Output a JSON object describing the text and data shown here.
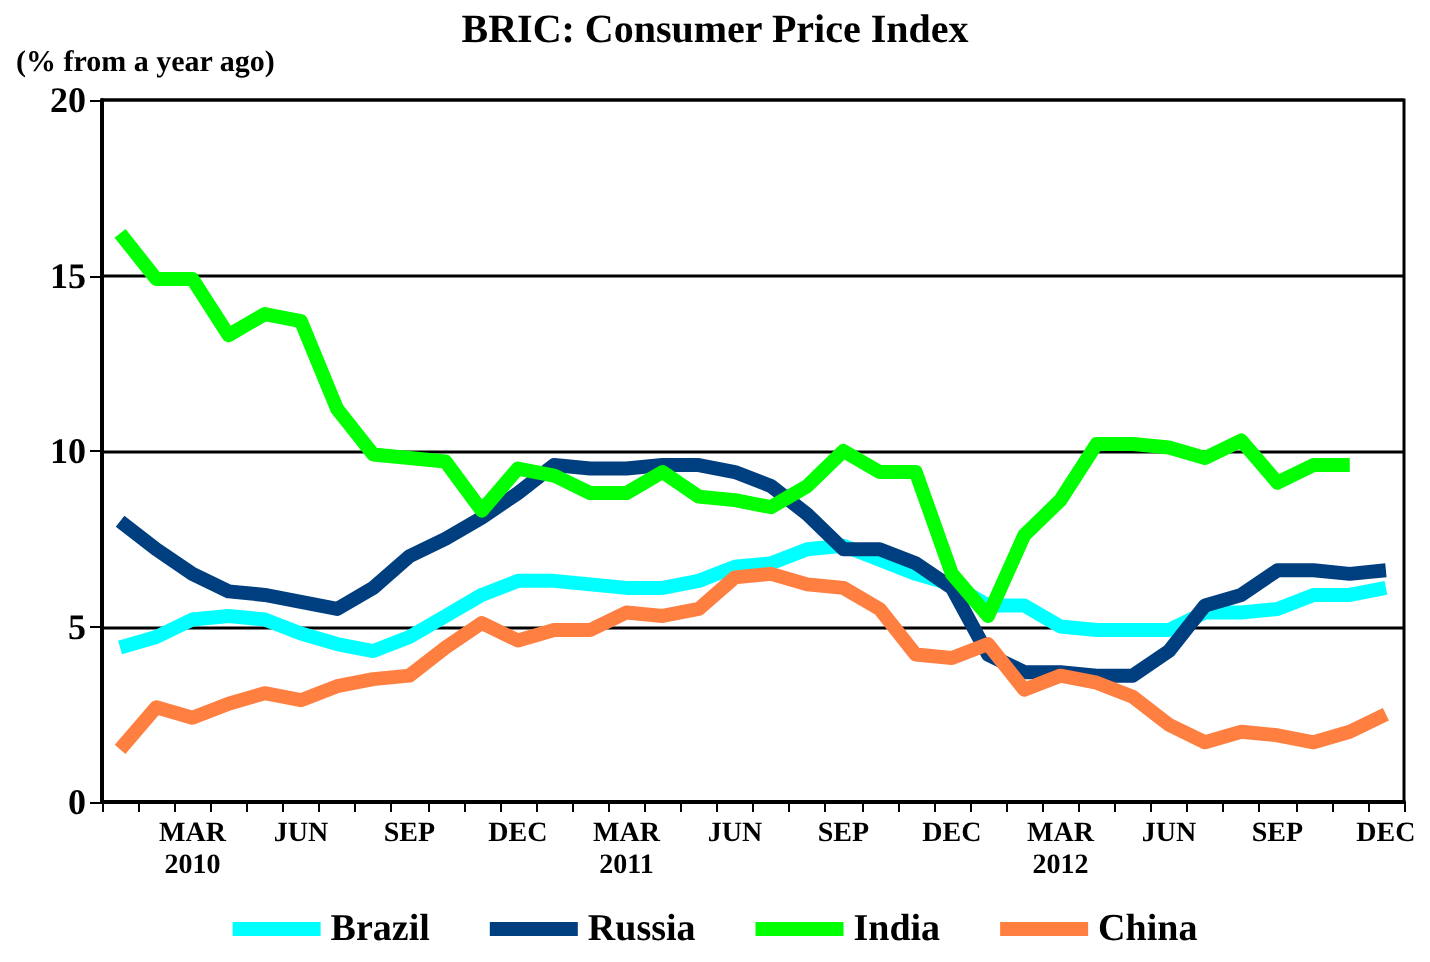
{
  "chart_data": {
    "type": "line",
    "title": "BRIC: Consumer Price Index",
    "ylabel": "(% from a year ago)",
    "categories": [
      null,
      null,
      "MAR\n2010",
      null,
      null,
      "JUN",
      null,
      null,
      "SEP",
      null,
      null,
      "DEC",
      null,
      null,
      "MAR\n2011",
      null,
      null,
      "JUN",
      null,
      null,
      "SEP",
      null,
      null,
      "DEC",
      null,
      null,
      "MAR\n2012",
      null,
      null,
      "JUN",
      null,
      null,
      "SEP",
      null,
      null,
      "DEC"
    ],
    "series": [
      {
        "name": "Brazil",
        "color": "#00ffff",
        "values": [
          4.4,
          4.7,
          5.2,
          5.3,
          5.2,
          4.8,
          4.5,
          4.3,
          4.7,
          5.3,
          5.9,
          6.3,
          6.3,
          6.2,
          6.1,
          6.1,
          6.3,
          6.7,
          6.8,
          7.2,
          7.3,
          6.9,
          6.5,
          6.2,
          5.6,
          5.6,
          5.0,
          4.9,
          4.9,
          4.9,
          5.4,
          5.4,
          5.5,
          5.9,
          5.9,
          6.1
        ]
      },
      {
        "name": "Russia",
        "color": "#003f7f",
        "values": [
          8.0,
          7.2,
          6.5,
          6.0,
          5.9,
          5.7,
          5.5,
          6.1,
          7.0,
          7.5,
          8.1,
          8.8,
          9.6,
          9.5,
          9.5,
          9.6,
          9.6,
          9.4,
          9.0,
          8.2,
          7.2,
          7.2,
          6.8,
          6.1,
          4.2,
          3.7,
          3.7,
          3.6,
          3.6,
          4.3,
          5.6,
          5.9,
          6.6,
          6.6,
          6.5,
          6.6
        ]
      },
      {
        "name": "India",
        "color": "#00ff00",
        "values": [
          16.2,
          14.9,
          14.9,
          13.3,
          13.9,
          13.7,
          11.2,
          9.9,
          9.8,
          9.7,
          8.3,
          9.5,
          9.3,
          8.8,
          8.8,
          9.4,
          8.7,
          8.6,
          8.4,
          9.0,
          10.0,
          9.4,
          9.4,
          6.5,
          5.3,
          7.6,
          8.6,
          10.2,
          10.2,
          10.1,
          9.8,
          10.3,
          9.1,
          9.6,
          9.6,
          null
        ]
      },
      {
        "name": "China",
        "color": "#ff7f40",
        "values": [
          1.5,
          2.7,
          2.4,
          2.8,
          3.1,
          2.9,
          3.3,
          3.5,
          3.6,
          4.4,
          5.1,
          4.6,
          4.9,
          4.9,
          5.4,
          5.3,
          5.5,
          6.4,
          6.5,
          6.2,
          6.1,
          5.5,
          4.2,
          4.1,
          4.5,
          3.2,
          3.6,
          3.4,
          3.0,
          2.2,
          1.7,
          2.0,
          1.9,
          1.7,
          2.0,
          2.5
        ]
      }
    ],
    "ylim": [
      0,
      20
    ],
    "yticks": [
      0,
      5,
      10,
      15,
      20
    ],
    "grid": "y",
    "legend": "bottom",
    "marker": "none",
    "line_style": "solid"
  }
}
